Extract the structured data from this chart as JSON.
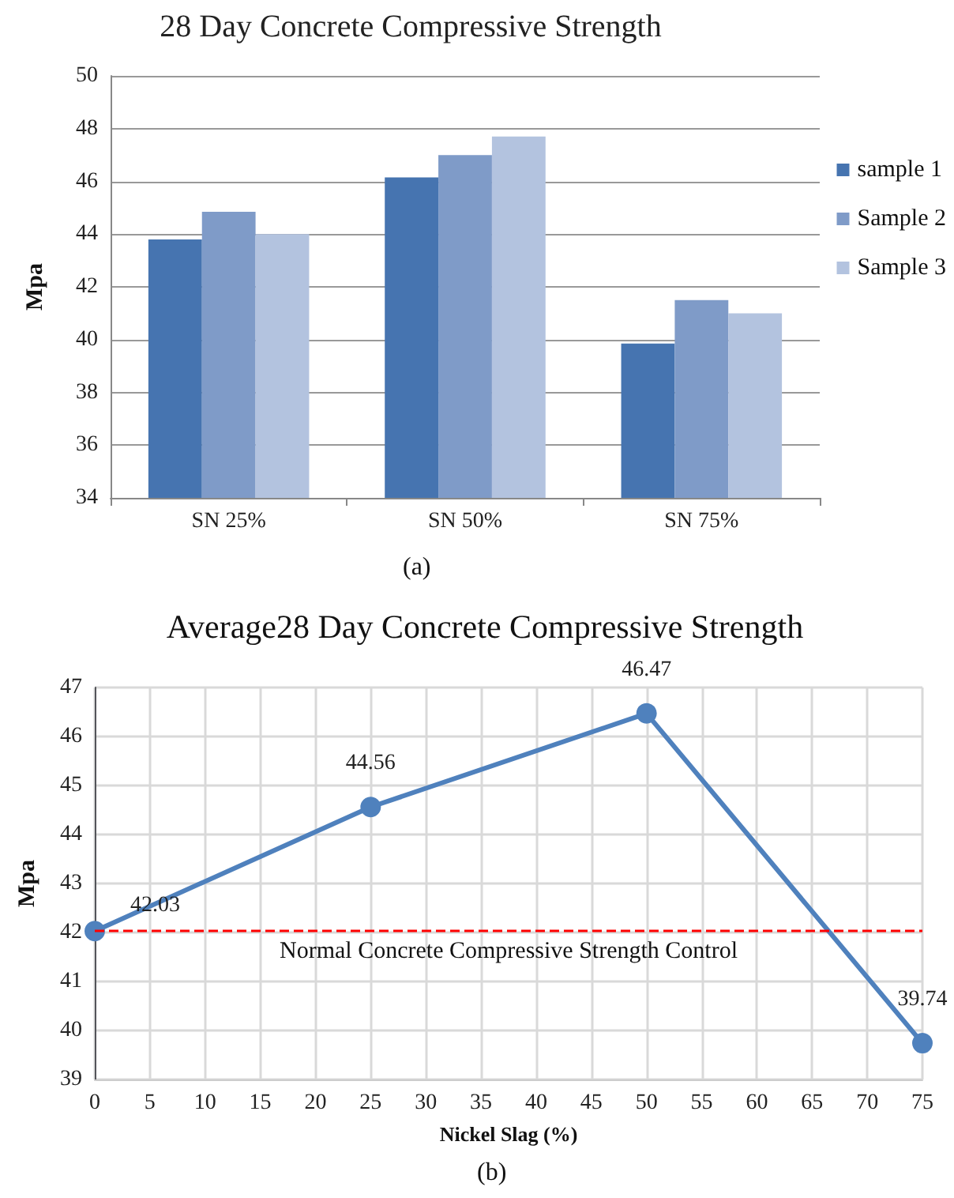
{
  "chart_data": [
    {
      "type": "bar",
      "title": "28 Day Concrete Compressive Strength",
      "ylabel": "Mpa",
      "annotations": [
        "(a)"
      ],
      "categories": [
        "SN 25%",
        "SN 50%",
        "SN 75%"
      ],
      "series": [
        {
          "name": "sample 1",
          "color": "#4674b0",
          "values": [
            43.8,
            46.15,
            39.85
          ]
        },
        {
          "name": "Sample 2",
          "color": "#7f9bc8",
          "values": [
            44.85,
            47.0,
            41.5
          ]
        },
        {
          "name": "Sample 3",
          "color": "#b3c3df",
          "values": [
            44.0,
            47.7,
            41.0
          ]
        }
      ],
      "ylim": [
        34,
        50
      ],
      "yticks": [
        34,
        36,
        38,
        40,
        42,
        44,
        46,
        48,
        50
      ],
      "grid": "y",
      "legend": "right"
    },
    {
      "type": "line",
      "title": "Average28 Day Concrete Compressive Strength",
      "xlabel": "Nickel Slag (%)",
      "ylabel": "Mpa",
      "annotations": [
        "(b)"
      ],
      "x": [
        0,
        25,
        50,
        75
      ],
      "series": [
        {
          "color": "#4f81bd",
          "values": [
            42.03,
            44.56,
            46.47,
            39.74
          ]
        }
      ],
      "xlim": [
        0,
        75
      ],
      "xticks": [
        0,
        5,
        10,
        15,
        20,
        25,
        30,
        35,
        40,
        45,
        50,
        55,
        60,
        65,
        70,
        75
      ],
      "ylim": [
        39,
        47
      ],
      "yticks": [
        39,
        40,
        41,
        42,
        43,
        44,
        45,
        46,
        47
      ],
      "ref_lines": [
        {
          "axis": "y",
          "value": 42.05,
          "label": "Normal Concrete Compressive Strength Control",
          "color": "#ff0000",
          "line_style": "dashed"
        }
      ],
      "grid": true,
      "marker": "circle",
      "data_labels": true,
      "line_style": "solid"
    }
  ]
}
